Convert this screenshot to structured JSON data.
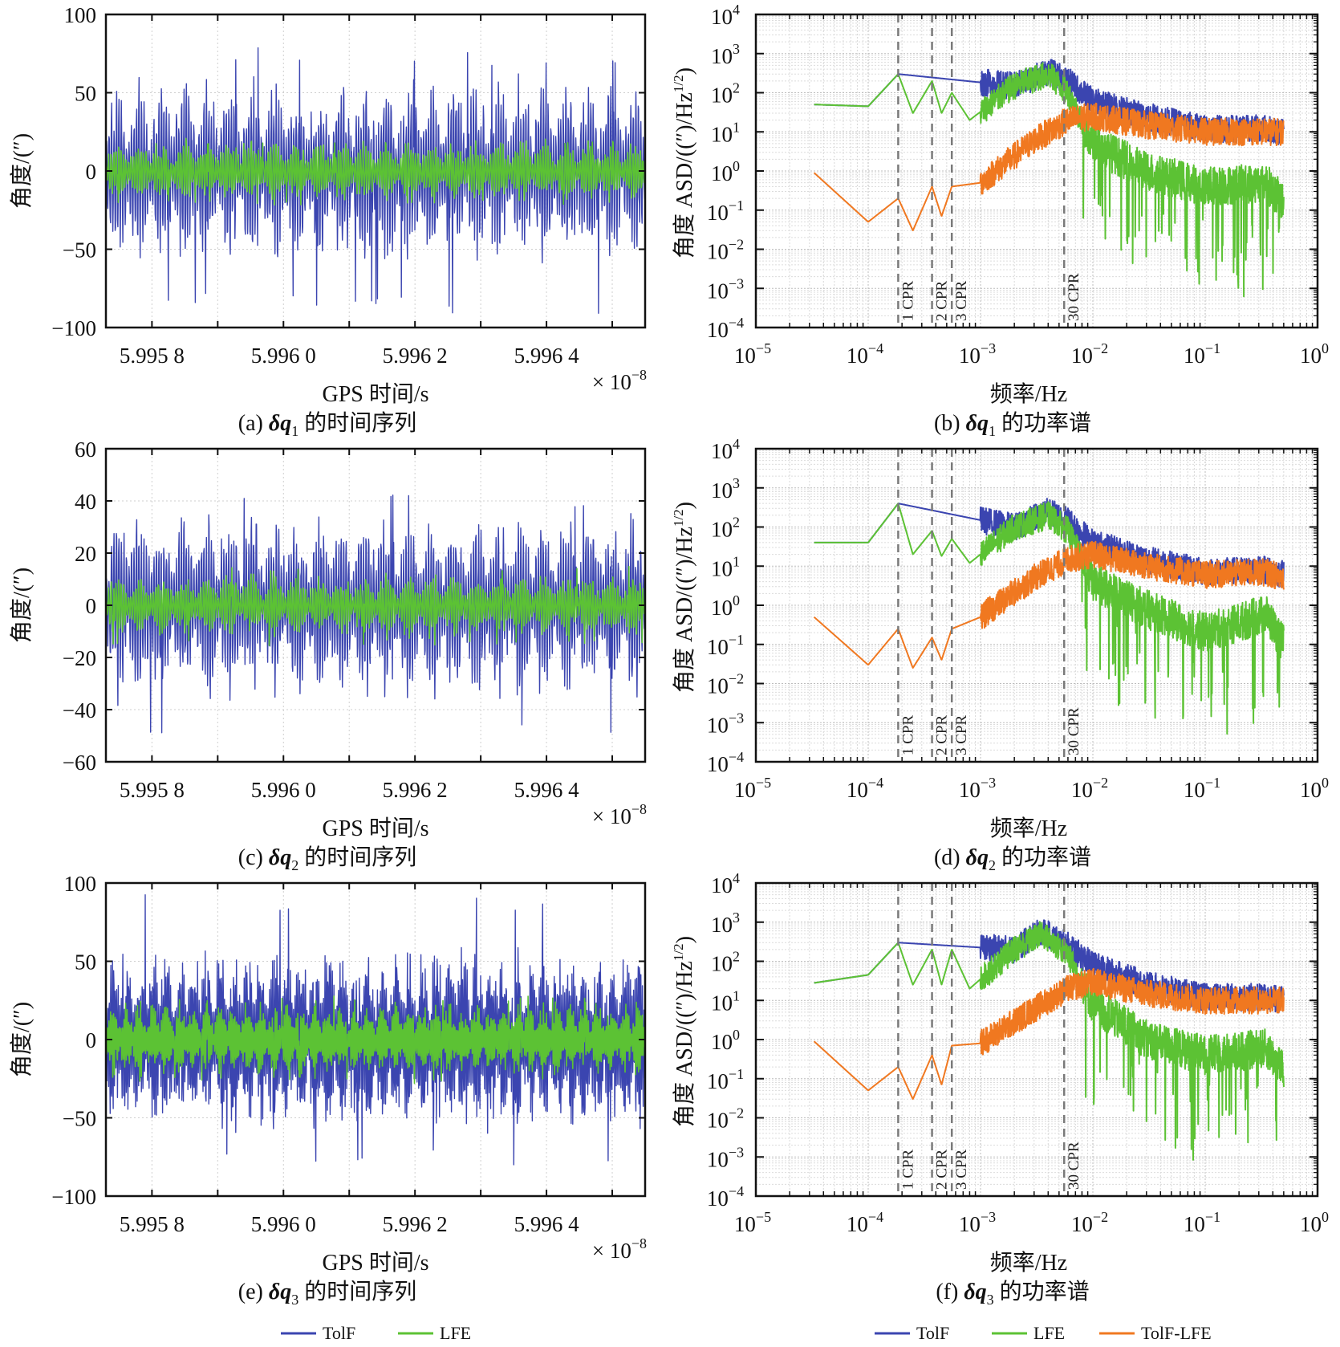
{
  "figure": {
    "legend_time": [
      {
        "name": "TolF",
        "color": "#3b45b0"
      },
      {
        "name": "LFE",
        "color": "#5cc234"
      }
    ],
    "legend_psd": [
      {
        "name": "TolF",
        "color": "#3b45b0"
      },
      {
        "name": "LFE",
        "color": "#5cc234"
      },
      {
        "name": "TolF-LFE",
        "color": "#f07820"
      }
    ]
  },
  "chart_data": [
    {
      "id": "a",
      "type": "line",
      "caption_prefix": "(a) ",
      "caption_symbol": "δq",
      "caption_sub": "1",
      "caption_suffix": " 的时间序列",
      "xlabel": "GPS 时间/s",
      "ylabel": "角度/(″)",
      "x_multiplier": "× 10",
      "x_multiplier_exp": "−8",
      "xlim": [
        5.99573,
        5.99655
      ],
      "xticks": [
        5.9958,
        5.996,
        5.9962,
        5.9964
      ],
      "xtick_labels": [
        "5.995 8",
        "5.996 0",
        "5.996 2",
        "5.996 4"
      ],
      "ylim": [
        -100,
        100
      ],
      "yticks": [
        -100,
        -50,
        0,
        50,
        100
      ],
      "ytick_labels": [
        "−100",
        "−50",
        "0",
        "50",
        "100"
      ],
      "grid": true,
      "series": [
        {
          "name": "TolF",
          "color": "#3b45b0",
          "envelope_amplitude": 55,
          "peak_max": 79,
          "trough_min": -91,
          "cycles": 24
        },
        {
          "name": "LFE",
          "color": "#5cc234",
          "envelope_amplitude": 18,
          "peak_max": 20,
          "trough_min": -22,
          "cycles": 24
        }
      ]
    },
    {
      "id": "b",
      "type": "line",
      "scale": "loglog",
      "caption_prefix": "(b) ",
      "caption_symbol": "δq",
      "caption_sub": "1",
      "caption_suffix": " 的功率谱",
      "xlabel": "频率/Hz",
      "ylabel": "角度 ASD/((″)/Hz",
      "ylabel_exp": "1/2",
      "ylabel_close": ")",
      "xlim_exp": [
        -5,
        0
      ],
      "ylim_exp": [
        -4,
        4
      ],
      "xtick_exps": [
        "−5",
        "−4",
        "−3",
        "−2",
        "−1",
        "0"
      ],
      "ytick_exps": [
        "4",
        "3",
        "2",
        "1",
        "0",
        "−1",
        "−2",
        "−3",
        "−4"
      ],
      "grid": true,
      "cpr_lines": [
        {
          "label": "1 CPR",
          "freq": 0.000185
        },
        {
          "label": "2 CPR",
          "freq": 0.00037
        },
        {
          "label": "3 CPR",
          "freq": 0.000555
        },
        {
          "label": "30 CPR",
          "freq": 0.00555
        }
      ],
      "series": [
        {
          "name": "LFE",
          "color": "#5cc234",
          "points": [
            [
              3.3e-05,
              50
            ],
            [
              0.0001,
              45
            ],
            [
              0.000185,
              300
            ],
            [
              0.00025,
              30
            ],
            [
              0.00037,
              200
            ],
            [
              0.00045,
              30
            ],
            [
              0.000555,
              100
            ],
            [
              0.0008,
              20
            ],
            [
              0.002,
              150
            ],
            [
              0.004,
              300
            ],
            [
              0.006,
              100
            ],
            [
              0.01,
              5
            ],
            [
              0.03,
              1
            ],
            [
              0.1,
              0.4
            ],
            [
              0.35,
              0.5
            ],
            [
              0.5,
              0.15
            ]
          ],
          "dip_floor": 0.0005
        },
        {
          "name": "TolF",
          "color": "#3b45b0",
          "points": [
            [
              3.3e-05,
              50
            ],
            [
              0.0001,
              45
            ],
            [
              0.000185,
              300
            ],
            [
              0.002,
              150
            ],
            [
              0.004,
              350
            ],
            [
              0.006,
              200
            ],
            [
              0.01,
              60
            ],
            [
              0.03,
              25
            ],
            [
              0.1,
              12
            ],
            [
              0.35,
              12
            ],
            [
              0.5,
              10
            ]
          ]
        },
        {
          "name": "TolF-LFE",
          "color": "#f07820",
          "points": [
            [
              3.3e-05,
              0.9
            ],
            [
              0.0001,
              0.05
            ],
            [
              0.000185,
              0.2
            ],
            [
              0.00025,
              0.03
            ],
            [
              0.00037,
              0.4
            ],
            [
              0.00045,
              0.07
            ],
            [
              0.000555,
              0.4
            ],
            [
              0.001,
              0.5
            ],
            [
              0.003,
              6
            ],
            [
              0.006,
              20
            ],
            [
              0.01,
              25
            ],
            [
              0.03,
              15
            ],
            [
              0.1,
              10
            ],
            [
              0.35,
              10
            ],
            [
              0.5,
              10
            ]
          ]
        }
      ]
    },
    {
      "id": "c",
      "type": "line",
      "caption_prefix": "(c) ",
      "caption_symbol": "δq",
      "caption_sub": "2",
      "caption_suffix": " 的时间序列",
      "xlabel": "GPS 时间/s",
      "ylabel": "角度/(″)",
      "x_multiplier": "× 10",
      "x_multiplier_exp": "−8",
      "xlim": [
        5.99573,
        5.99655
      ],
      "xticks": [
        5.9958,
        5.996,
        5.9962,
        5.9964
      ],
      "xtick_labels": [
        "5.995 8",
        "5.996 0",
        "5.996 2",
        "5.996 4"
      ],
      "ylim": [
        -60,
        60
      ],
      "yticks": [
        -60,
        -40,
        -20,
        0,
        20,
        40,
        60
      ],
      "ytick_labels": [
        "−60",
        "−40",
        "−20",
        "0",
        "20",
        "40",
        "60"
      ],
      "grid": true,
      "series": [
        {
          "name": "TolF",
          "color": "#3b45b0",
          "envelope_amplitude": 34,
          "peak_max": 43,
          "trough_min": -52,
          "cycles": 24
        },
        {
          "name": "LFE",
          "color": "#5cc234",
          "envelope_amplitude": 11,
          "peak_max": 15,
          "trough_min": -16,
          "cycles": 24
        }
      ]
    },
    {
      "id": "d",
      "type": "line",
      "scale": "loglog",
      "caption_prefix": "(d) ",
      "caption_symbol": "δq",
      "caption_sub": "2",
      "caption_suffix": " 的功率谱",
      "xlabel": "频率/Hz",
      "ylabel": "角度 ASD/((″)/Hz",
      "ylabel_exp": "1/2",
      "ylabel_close": ")",
      "xlim_exp": [
        -5,
        0
      ],
      "ylim_exp": [
        -4,
        4
      ],
      "xtick_exps": [
        "−5",
        "−4",
        "−3",
        "−2",
        "−1",
        "0"
      ],
      "ytick_exps": [
        "4",
        "3",
        "2",
        "1",
        "0",
        "−1",
        "−2",
        "−3",
        "−4"
      ],
      "grid": true,
      "cpr_lines": [
        {
          "label": "1 CPR",
          "freq": 0.000185
        },
        {
          "label": "2 CPR",
          "freq": 0.00037
        },
        {
          "label": "3 CPR",
          "freq": 0.000555
        },
        {
          "label": "30 CPR",
          "freq": 0.00555
        }
      ],
      "series": [
        {
          "name": "LFE",
          "color": "#5cc234",
          "points": [
            [
              3.3e-05,
              40
            ],
            [
              0.0001,
              40
            ],
            [
              0.000185,
              400
            ],
            [
              0.00025,
              20
            ],
            [
              0.00037,
              80
            ],
            [
              0.00045,
              18
            ],
            [
              0.000555,
              50
            ],
            [
              0.0008,
              12
            ],
            [
              0.002,
              100
            ],
            [
              0.004,
              200
            ],
            [
              0.006,
              80
            ],
            [
              0.01,
              4
            ],
            [
              0.03,
              0.8
            ],
            [
              0.1,
              0.2
            ],
            [
              0.35,
              0.6
            ],
            [
              0.5,
              0.1
            ]
          ],
          "dip_floor": 0.0003
        },
        {
          "name": "TolF",
          "color": "#3b45b0",
          "points": [
            [
              3.3e-05,
              40
            ],
            [
              0.0001,
              40
            ],
            [
              0.000185,
              400
            ],
            [
              0.002,
              100
            ],
            [
              0.004,
              250
            ],
            [
              0.006,
              150
            ],
            [
              0.01,
              40
            ],
            [
              0.03,
              15
            ],
            [
              0.1,
              7
            ],
            [
              0.35,
              8
            ],
            [
              0.5,
              6
            ]
          ]
        },
        {
          "name": "TolF-LFE",
          "color": "#f07820",
          "points": [
            [
              3.3e-05,
              0.5
            ],
            [
              0.0001,
              0.03
            ],
            [
              0.000185,
              0.25
            ],
            [
              0.00025,
              0.025
            ],
            [
              0.00037,
              0.15
            ],
            [
              0.00045,
              0.04
            ],
            [
              0.000555,
              0.25
            ],
            [
              0.001,
              0.5
            ],
            [
              0.003,
              5
            ],
            [
              0.006,
              15
            ],
            [
              0.01,
              20
            ],
            [
              0.03,
              10
            ],
            [
              0.1,
              6
            ],
            [
              0.35,
              7
            ],
            [
              0.5,
              5
            ]
          ]
        }
      ]
    },
    {
      "id": "e",
      "type": "line",
      "caption_prefix": "(e) ",
      "caption_symbol": "δq",
      "caption_sub": "3",
      "caption_suffix": " 的时间序列",
      "xlabel": "GPS 时间/s",
      "ylabel": "角度/(″)",
      "x_multiplier": "× 10",
      "x_multiplier_exp": "−8",
      "xlim": [
        5.99573,
        5.99655
      ],
      "xticks": [
        5.9958,
        5.996,
        5.9962,
        5.9964
      ],
      "xtick_labels": [
        "5.995 8",
        "5.996 0",
        "5.996 2",
        "5.996 4"
      ],
      "ylim": [
        -100,
        100
      ],
      "yticks": [
        -100,
        -50,
        0,
        50,
        100
      ],
      "ytick_labels": [
        "−100",
        "−50",
        "0",
        "50",
        "100"
      ],
      "grid": true,
      "series": [
        {
          "name": "TolF",
          "color": "#3b45b0",
          "envelope_amplitude": 60,
          "peak_max": 94,
          "trough_min": -83,
          "cycles": 40
        },
        {
          "name": "LFE",
          "color": "#5cc234",
          "envelope_amplitude": 22,
          "peak_max": 28,
          "trough_min": -28,
          "cycles": 40
        }
      ]
    },
    {
      "id": "f",
      "type": "line",
      "scale": "loglog",
      "caption_prefix": "(f) ",
      "caption_symbol": "δq",
      "caption_sub": "3",
      "caption_suffix": " 的功率谱",
      "xlabel": "频率/Hz",
      "ylabel": "角度 ASD/((″)/Hz",
      "ylabel_exp": "1/2",
      "ylabel_close": ")",
      "xlim_exp": [
        -5,
        0
      ],
      "ylim_exp": [
        -4,
        4
      ],
      "xtick_exps": [
        "−5",
        "−4",
        "−3",
        "−2",
        "−1",
        "0"
      ],
      "ytick_exps": [
        "4",
        "3",
        "2",
        "1",
        "0",
        "−1",
        "−2",
        "−3",
        "−4"
      ],
      "grid": true,
      "cpr_lines": [
        {
          "label": "1 CPR",
          "freq": 0.000185
        },
        {
          "label": "2 CPR",
          "freq": 0.00037
        },
        {
          "label": "3 CPR",
          "freq": 0.000555
        },
        {
          "label": "30 CPR",
          "freq": 0.00555
        }
      ],
      "series": [
        {
          "name": "LFE",
          "color": "#5cc234",
          "points": [
            [
              3.3e-05,
              28
            ],
            [
              0.0001,
              45
            ],
            [
              0.000185,
              300
            ],
            [
              0.00025,
              25
            ],
            [
              0.00037,
              200
            ],
            [
              0.00045,
              25
            ],
            [
              0.000555,
              200
            ],
            [
              0.0008,
              20
            ],
            [
              0.002,
              200
            ],
            [
              0.0035,
              500
            ],
            [
              0.006,
              150
            ],
            [
              0.01,
              8
            ],
            [
              0.03,
              1
            ],
            [
              0.1,
              0.4
            ],
            [
              0.35,
              0.6
            ],
            [
              0.5,
              0.15
            ]
          ],
          "dip_floor": 0.0005
        },
        {
          "name": "TolF",
          "color": "#3b45b0",
          "points": [
            [
              3.3e-05,
              28
            ],
            [
              0.0001,
              45
            ],
            [
              0.000185,
              300
            ],
            [
              0.002,
              200
            ],
            [
              0.0035,
              600
            ],
            [
              0.006,
              250
            ],
            [
              0.01,
              80
            ],
            [
              0.03,
              25
            ],
            [
              0.1,
              12
            ],
            [
              0.35,
              12
            ],
            [
              0.5,
              10
            ]
          ]
        },
        {
          "name": "TolF-LFE",
          "color": "#f07820",
          "points": [
            [
              3.3e-05,
              0.9
            ],
            [
              0.0001,
              0.05
            ],
            [
              0.000185,
              0.2
            ],
            [
              0.00025,
              0.03
            ],
            [
              0.00037,
              0.4
            ],
            [
              0.00045,
              0.07
            ],
            [
              0.000555,
              0.7
            ],
            [
              0.001,
              0.8
            ],
            [
              0.003,
              6
            ],
            [
              0.006,
              20
            ],
            [
              0.01,
              30
            ],
            [
              0.03,
              15
            ],
            [
              0.1,
              10
            ],
            [
              0.35,
              10
            ],
            [
              0.5,
              10
            ]
          ]
        }
      ]
    }
  ]
}
